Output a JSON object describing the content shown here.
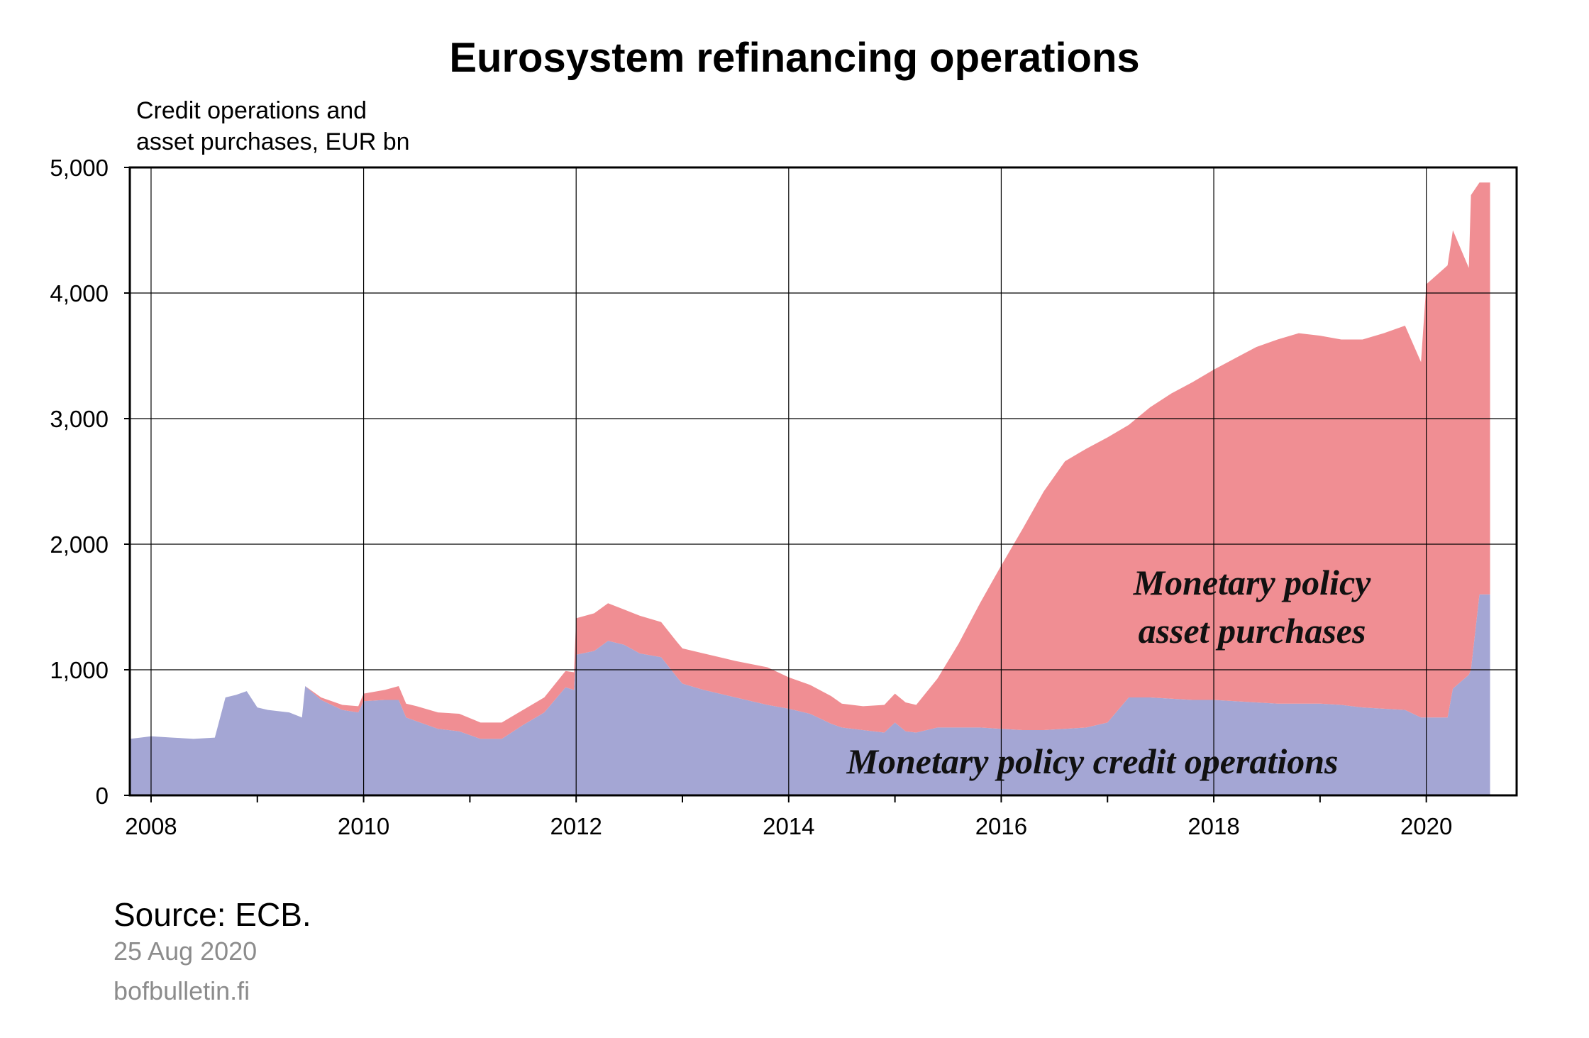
{
  "chart_data": {
    "type": "area",
    "title": "Eurosystem refinancing operations",
    "ylabel_lines": [
      "Credit operations and",
      "asset purchases, EUR bn"
    ],
    "ylim": [
      0,
      5000
    ],
    "xlim": [
      2007.8,
      2020.85
    ],
    "ytick_labels": [
      "0",
      "1,000",
      "2,000",
      "3,000",
      "4,000",
      "5,000"
    ],
    "ytick_values": [
      0,
      1000,
      2000,
      3000,
      4000,
      5000
    ],
    "xtick_labels": [
      "2008",
      "2010",
      "2012",
      "2014",
      "2016",
      "2018",
      "2020"
    ],
    "xtick_values": [
      2008,
      2010,
      2012,
      2014,
      2016,
      2018,
      2020
    ],
    "grid": true,
    "stacked": true,
    "x": [
      2007.8,
      2007.9,
      2008.0,
      2008.2,
      2008.4,
      2008.6,
      2008.7,
      2008.8,
      2008.9,
      2009.0,
      2009.1,
      2009.3,
      2009.42,
      2009.45,
      2009.6,
      2009.8,
      2009.95,
      2010.0,
      2010.2,
      2010.33,
      2010.4,
      2010.5,
      2010.7,
      2010.9,
      2011.1,
      2011.3,
      2011.5,
      2011.7,
      2011.9,
      2011.98,
      2012.0,
      2012.17,
      2012.3,
      2012.45,
      2012.6,
      2012.8,
      2012.95,
      2013.0,
      2013.2,
      2013.5,
      2013.8,
      2014.0,
      2014.2,
      2014.4,
      2014.5,
      2014.7,
      2014.9,
      2015.0,
      2015.1,
      2015.2,
      2015.4,
      2015.6,
      2015.8,
      2016.0,
      2016.2,
      2016.4,
      2016.6,
      2016.8,
      2017.0,
      2017.2,
      2017.4,
      2017.6,
      2017.8,
      2018.0,
      2018.2,
      2018.4,
      2018.6,
      2018.8,
      2019.0,
      2019.2,
      2019.4,
      2019.6,
      2019.8,
      2019.95,
      2020.0,
      2020.2,
      2020.25,
      2020.4,
      2020.42,
      2020.5,
      2020.6
    ],
    "series": [
      {
        "name": "Monetary policy credit operations",
        "color": "#a4a6d4",
        "values": [
          450,
          460,
          470,
          460,
          450,
          460,
          780,
          800,
          830,
          700,
          680,
          660,
          620,
          870,
          760,
          680,
          660,
          750,
          760,
          760,
          620,
          590,
          530,
          510,
          450,
          450,
          560,
          660,
          860,
          840,
          1120,
          1150,
          1230,
          1200,
          1130,
          1100,
          940,
          890,
          840,
          780,
          720,
          690,
          650,
          570,
          540,
          520,
          500,
          580,
          510,
          500,
          540,
          540,
          540,
          530,
          520,
          520,
          530,
          540,
          580,
          780,
          780,
          770,
          760,
          760,
          750,
          740,
          730,
          730,
          730,
          720,
          700,
          690,
          680,
          620,
          620,
          620,
          850,
          960,
          1000,
          1600,
          1600
        ]
      },
      {
        "name": "Monetary policy asset purchases",
        "color": "#f08e93",
        "values": [
          0,
          0,
          0,
          0,
          0,
          0,
          0,
          0,
          0,
          0,
          0,
          0,
          0,
          0,
          20,
          40,
          50,
          60,
          80,
          110,
          110,
          120,
          130,
          140,
          130,
          130,
          120,
          120,
          130,
          140,
          290,
          300,
          300,
          280,
          300,
          280,
          280,
          280,
          290,
          290,
          300,
          250,
          230,
          220,
          190,
          190,
          220,
          230,
          230,
          220,
          390,
          670,
          990,
          1300,
          1600,
          1900,
          2130,
          2220,
          2270,
          2170,
          2310,
          2430,
          2530,
          2630,
          2730,
          2830,
          2900,
          2950,
          2930,
          2910,
          2930,
          2990,
          3060,
          2830,
          3450,
          3600,
          3650,
          3240,
          3780,
          3280,
          3280
        ]
      }
    ],
    "annotations": [
      {
        "lines": [
          "Monetary policy",
          "asset purchases"
        ]
      },
      {
        "lines": [
          "Monetary policy credit operations"
        ]
      }
    ]
  },
  "footer": {
    "source": "Source: ECB.",
    "date": "25 Aug 2020",
    "site": "bofbulletin.fi"
  }
}
